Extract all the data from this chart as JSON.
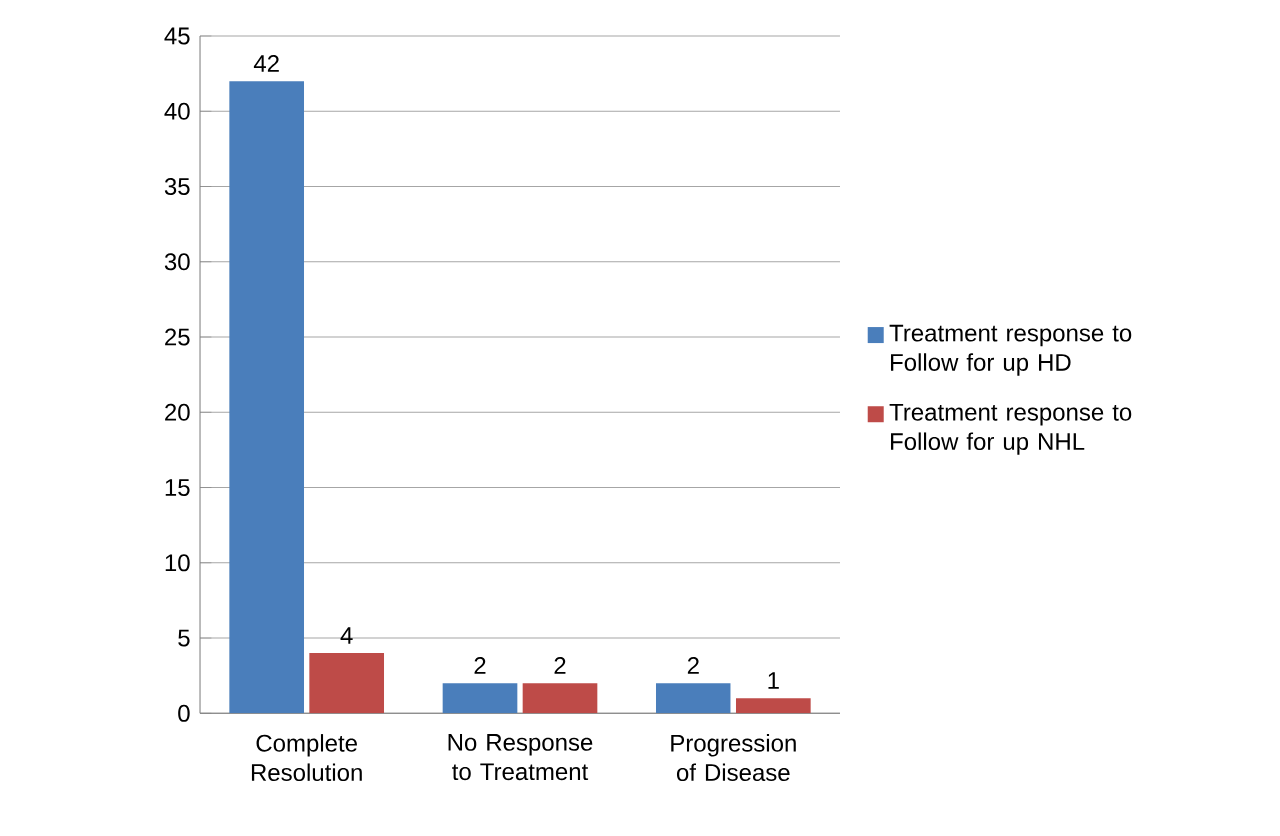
{
  "chart_data": {
    "type": "bar",
    "categories": [
      "Complete Resolution",
      "No Response to Treatment",
      "Progression of Disease"
    ],
    "series": [
      {
        "name": "Treatment response to Follow for up HD",
        "color": "#4a7ebb",
        "values": [
          42,
          2,
          2
        ]
      },
      {
        "name": "Treatment response to Follow for up NHL",
        "color": "#be4b48",
        "values": [
          4,
          2,
          1
        ]
      }
    ],
    "ylim": [
      0,
      45
    ],
    "yticks": [
      0,
      5,
      10,
      15,
      20,
      25,
      30,
      35,
      40,
      45
    ],
    "grid": "y",
    "legend": "right",
    "data_labels": true
  }
}
